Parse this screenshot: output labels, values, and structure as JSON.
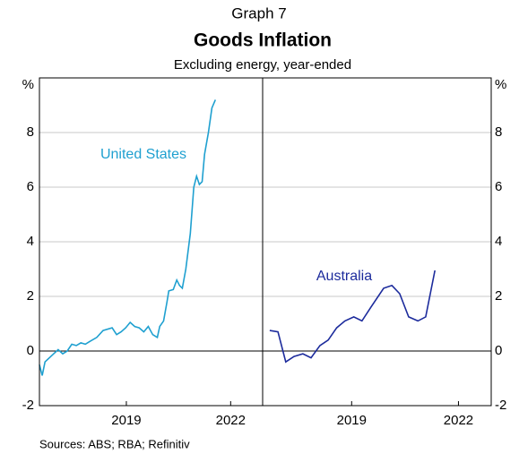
{
  "header": {
    "label": "Graph 7",
    "title": "Goods Inflation",
    "subtitle": "Excluding energy, year-ended"
  },
  "source": "Sources: ABS; RBA; Refinitiv",
  "chart_data": [
    {
      "type": "line",
      "y_unit": "%",
      "xlim": [
        2017,
        2023.42
      ],
      "ylim": [
        -2,
        10
      ],
      "yticks": [
        -2,
        0,
        2,
        4,
        6,
        8
      ],
      "xticks": [
        {
          "value": 2019.5,
          "label": "2019"
        },
        {
          "value": 2022.5,
          "label": "2022"
        }
      ],
      "grid": true,
      "series": [
        {
          "name": "United States",
          "color": "#1fa0d0",
          "x": [
            2017.0,
            2017.08,
            2017.16,
            2017.41,
            2017.54,
            2017.67,
            2017.8,
            2017.93,
            2018.06,
            2018.19,
            2018.32,
            2018.45,
            2018.65,
            2018.83,
            2019.09,
            2019.22,
            2019.35,
            2019.48,
            2019.61,
            2019.74,
            2019.87,
            2020.0,
            2020.13,
            2020.26,
            2020.39,
            2020.46,
            2020.57,
            2020.67,
            2020.72,
            2020.85,
            2020.95,
            2021.03,
            2021.11,
            2021.21,
            2021.34,
            2021.44,
            2021.52,
            2021.6,
            2021.68,
            2021.75,
            2021.86,
            2021.96,
            2022.06
          ],
          "values": [
            -0.5,
            -0.9,
            -0.4,
            -0.1,
            0.05,
            -0.1,
            0.0,
            0.25,
            0.2,
            0.3,
            0.25,
            0.35,
            0.5,
            0.75,
            0.85,
            0.6,
            0.7,
            0.85,
            1.05,
            0.9,
            0.85,
            0.7,
            0.9,
            0.6,
            0.5,
            0.9,
            1.1,
            1.8,
            2.2,
            2.25,
            2.6,
            2.4,
            2.3,
            3.0,
            4.3,
            6.0,
            6.4,
            6.1,
            6.2,
            7.2,
            8.0,
            8.9,
            9.2
          ]
        }
      ]
    },
    {
      "type": "line",
      "y_unit": "%",
      "xlim": [
        2017,
        2023.42
      ],
      "ylim": [
        -2,
        10
      ],
      "yticks": [
        -2,
        0,
        2,
        4,
        6,
        8
      ],
      "xticks": [
        {
          "value": 2019.5,
          "label": "2019"
        },
        {
          "value": 2022.5,
          "label": "2022"
        }
      ],
      "grid": true,
      "series": [
        {
          "name": "Australia",
          "color": "#1c2b9c",
          "x": [
            2017.2,
            2017.43,
            2017.65,
            2017.88,
            2018.13,
            2018.36,
            2018.61,
            2018.84,
            2019.08,
            2019.31,
            2019.56,
            2019.79,
            2020.04,
            2020.4,
            2020.63,
            2020.85,
            2021.1,
            2021.36,
            2021.58,
            2021.84
          ],
          "values": [
            0.75,
            0.7,
            -0.4,
            -0.2,
            -0.1,
            -0.25,
            0.2,
            0.4,
            0.85,
            1.1,
            1.25,
            1.1,
            1.6,
            2.3,
            2.4,
            2.1,
            1.25,
            1.1,
            1.25,
            2.95
          ]
        }
      ]
    }
  ]
}
